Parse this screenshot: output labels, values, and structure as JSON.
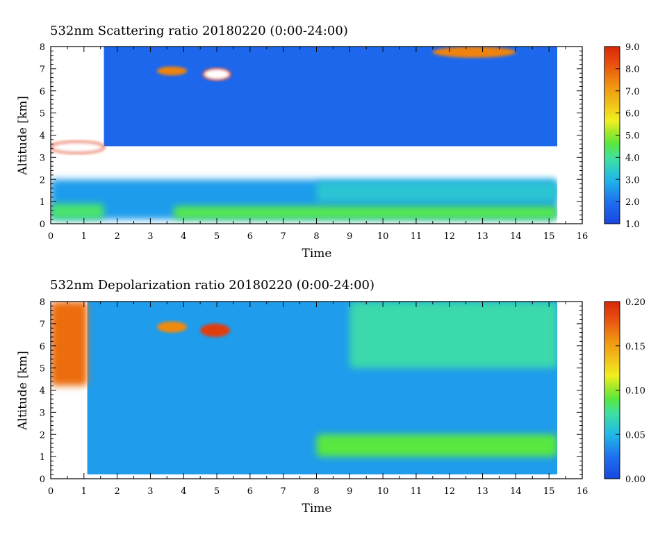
{
  "chart_data": [
    {
      "type": "heatmap",
      "title": "532nm Scattering ratio  20180220 (0:00-24:00)",
      "xlabel": "Time",
      "ylabel": "Altitude [km]",
      "xlim": [
        0,
        16
      ],
      "ylim": [
        0,
        8
      ],
      "x_ticks": [
        "0",
        "1",
        "2",
        "3",
        "4",
        "5",
        "6",
        "7",
        "8",
        "9",
        "10",
        "11",
        "12",
        "13",
        "14",
        "15",
        "16"
      ],
      "y_ticks": [
        "0",
        "1",
        "2",
        "3",
        "4",
        "5",
        "6",
        "7",
        "8"
      ],
      "data_end_time": 15.25,
      "colorbar": {
        "min": 1.0,
        "max": 9.0,
        "tick_values": [
          1.0,
          2.0,
          3.0,
          4.0,
          5.0,
          6.0,
          7.0,
          8.0,
          9.0
        ],
        "ticks": [
          "1.0",
          "2.0",
          "3.0",
          "4.0",
          "5.0",
          "6.0",
          "7.0",
          "8.0",
          "9.0"
        ]
      },
      "features": [
        {
          "kind": "background",
          "t": [
            1.6,
            15.25
          ],
          "alt": [
            3.5,
            8.0
          ],
          "value": 1.8
        },
        {
          "kind": "layer",
          "t": [
            0,
            15.25
          ],
          "alt": [
            0.2,
            2.0
          ],
          "value": 2.6
        },
        {
          "kind": "layer",
          "t": [
            8.0,
            15.25
          ],
          "alt": [
            1.0,
            1.9
          ],
          "value": 3.3
        },
        {
          "kind": "layer",
          "t": [
            0,
            1.6
          ],
          "alt": [
            0.2,
            0.9
          ],
          "value": 4.3
        },
        {
          "kind": "layer",
          "t": [
            3.7,
            15.25
          ],
          "alt": [
            0.2,
            0.8
          ],
          "value": 4.5
        },
        {
          "kind": "cloud",
          "t": [
            3.2,
            4.1
          ],
          "alt": [
            6.7,
            7.1
          ],
          "value": 7.5
        },
        {
          "kind": "cloud",
          "t": [
            4.6,
            5.4
          ],
          "alt": [
            6.5,
            7.0
          ],
          "value": 9.0
        },
        {
          "kind": "cloud",
          "t": [
            11.5,
            14.0
          ],
          "alt": [
            7.5,
            8.0
          ],
          "value": 7.5
        },
        {
          "kind": "cloud",
          "t": [
            0,
            1.6
          ],
          "alt": [
            3.2,
            3.7
          ],
          "value": 9.0
        }
      ]
    },
    {
      "type": "heatmap",
      "title": "532nm Depolarization ratio  20180220 (0:00-24:00)",
      "xlabel": "Time",
      "ylabel": "Altitude [km]",
      "xlim": [
        0,
        16
      ],
      "ylim": [
        0,
        8
      ],
      "x_ticks": [
        "0",
        "1",
        "2",
        "3",
        "4",
        "5",
        "6",
        "7",
        "8",
        "9",
        "10",
        "11",
        "12",
        "13",
        "14",
        "15",
        "16"
      ],
      "y_ticks": [
        "0",
        "1",
        "2",
        "3",
        "4",
        "5",
        "6",
        "7",
        "8"
      ],
      "data_end_time": 15.25,
      "colorbar": {
        "min": 0.0,
        "max": 0.2,
        "tick_values": [
          0.0,
          0.05,
          0.1,
          0.15,
          0.2
        ],
        "ticks": [
          "0.00",
          "0.05",
          "0.10",
          "0.15",
          "0.20"
        ]
      },
      "features": [
        {
          "kind": "background",
          "t": [
            1.1,
            15.25
          ],
          "alt": [
            0.2,
            8.0
          ],
          "value": 0.04
        },
        {
          "kind": "layer",
          "t": [
            0,
            1.1
          ],
          "alt": [
            4.2,
            8.0
          ],
          "value": 0.17
        },
        {
          "kind": "layer",
          "t": [
            8.0,
            15.25
          ],
          "alt": [
            1.0,
            2.0
          ],
          "value": 0.09
        },
        {
          "kind": "cloud",
          "t": [
            3.2,
            4.1
          ],
          "alt": [
            6.6,
            7.1
          ],
          "value": 0.16
        },
        {
          "kind": "cloud",
          "t": [
            4.5,
            5.4
          ],
          "alt": [
            6.4,
            7.0
          ],
          "value": 0.19
        },
        {
          "kind": "layer",
          "t": [
            9.0,
            15.25
          ],
          "alt": [
            5.0,
            8.0
          ],
          "value": 0.07
        }
      ]
    }
  ]
}
